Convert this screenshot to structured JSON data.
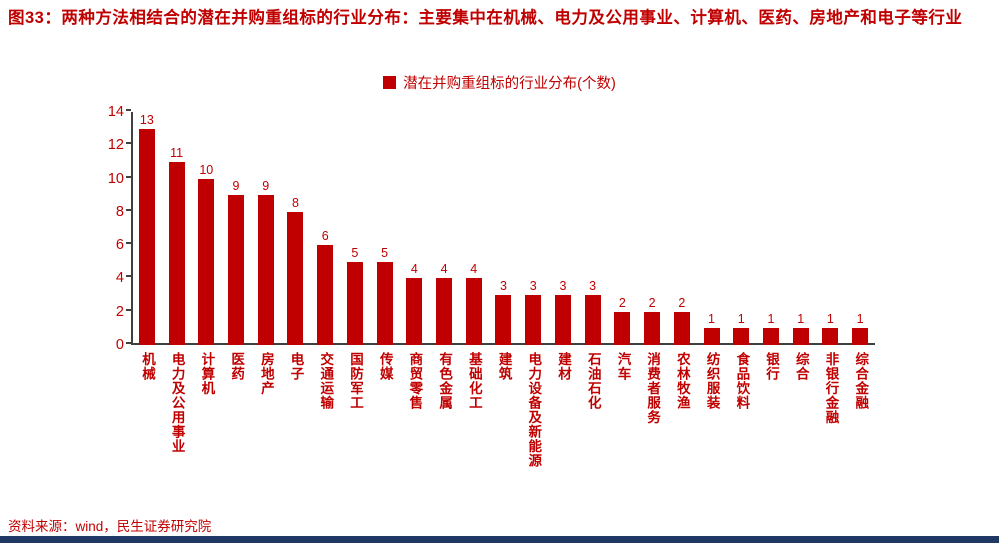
{
  "title": {
    "text": "图33：两种方法相结合的潜在并购重组标的行业分布：主要集中在机械、电力及公用事业、计算机、医药、房地产和电子等行业"
  },
  "source": "资料来源：wind，民生证券研究院",
  "colors": {
    "accent": "#C00000",
    "bar": "#C00000",
    "footer_bar": "#1F3864",
    "axis": "#404040"
  },
  "chart_data": {
    "type": "bar",
    "title": "潜在并购重组标的行业分布(个数)",
    "legend": [
      "潜在并购重组标的行业分布(个数)"
    ],
    "legend_position": "top-center",
    "categories": [
      "机械",
      "电力及公用事业",
      "计算机",
      "医药",
      "房地产",
      "电子",
      "交通运输",
      "国防军工",
      "传媒",
      "商贸零售",
      "有色金属",
      "基础化工",
      "建筑",
      "电力设备及新能源",
      "建材",
      "石油石化",
      "汽车",
      "消费者服务",
      "农林牧渔",
      "纺织服装",
      "食品饮料",
      "银行",
      "综合",
      "非银行金融",
      "综合金融"
    ],
    "values": [
      13,
      11,
      10,
      9,
      9,
      8,
      6,
      5,
      5,
      4,
      4,
      4,
      3,
      3,
      3,
      3,
      2,
      2,
      2,
      1,
      1,
      1,
      1,
      1,
      1
    ],
    "xlabel": "",
    "ylabel": "",
    "ylim": [
      0,
      14
    ],
    "yticks": [
      0,
      2,
      4,
      6,
      8,
      10,
      12,
      14
    ],
    "grid": false,
    "bar_value_labels": true
  }
}
